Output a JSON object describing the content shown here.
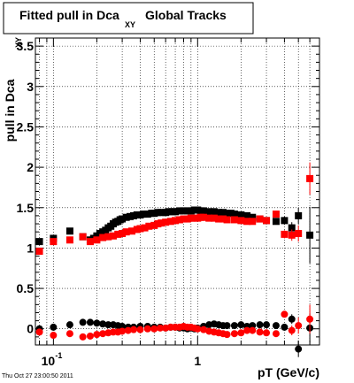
{
  "chart_data": {
    "type": "scatter",
    "title_main": "Fitted pull in Dca",
    "title_sub": "XY",
    "title_tail": "Global Tracks",
    "xlabel": "pT (GeV/c)",
    "ylabel": "pull in Dca",
    "ylabel_sub": "XY",
    "x_scale": "log",
    "xlim": [
      0.075,
      7.0
    ],
    "ylim": [
      -0.2,
      3.6
    ],
    "x_ticks": [
      {
        "v": 0.1,
        "base": "10",
        "exp": "-1"
      },
      {
        "v": 1,
        "base": "1",
        "exp": ""
      }
    ],
    "y_ticks": [
      "0",
      "0.5",
      "1",
      "1.5",
      "2",
      "2.5",
      "3",
      "3.5"
    ],
    "grid": true,
    "timestamp": "Thu Oct 27 23:00:50 2011",
    "colors": {
      "black": "#000000",
      "red": "#ff0000"
    },
    "series": [
      {
        "color": "black",
        "marker": "square",
        "x": [
          0.08,
          0.1,
          0.13,
          0.16,
          0.18,
          0.19,
          0.2,
          0.21,
          0.22,
          0.23,
          0.24,
          0.25,
          0.26,
          0.27,
          0.28,
          0.29,
          0.3,
          0.32,
          0.34,
          0.36,
          0.38,
          0.4,
          0.42,
          0.45,
          0.48,
          0.5,
          0.53,
          0.56,
          0.6,
          0.63,
          0.67,
          0.7,
          0.75,
          0.8,
          0.85,
          0.9,
          0.95,
          1.0,
          1.05,
          1.1,
          1.2,
          1.3,
          1.4,
          1.5,
          1.6,
          1.7,
          1.8,
          2.0,
          2.2,
          2.4,
          2.7,
          3.0,
          3.5,
          4.0,
          4.5,
          5.0,
          6.0
        ],
        "y": [
          1.08,
          1.12,
          1.21,
          1.14,
          1.1,
          1.12,
          1.15,
          1.18,
          1.2,
          1.22,
          1.25,
          1.27,
          1.3,
          1.32,
          1.33,
          1.35,
          1.36,
          1.38,
          1.39,
          1.4,
          1.41,
          1.41,
          1.42,
          1.42,
          1.43,
          1.43,
          1.44,
          1.44,
          1.44,
          1.45,
          1.45,
          1.45,
          1.46,
          1.46,
          1.46,
          1.46,
          1.47,
          1.47,
          1.46,
          1.46,
          1.45,
          1.45,
          1.44,
          1.44,
          1.43,
          1.43,
          1.42,
          1.41,
          1.4,
          1.38,
          1.36,
          1.34,
          1.33,
          1.34,
          1.25,
          1.4,
          1.16
        ],
        "err": [
          0,
          0,
          0,
          0,
          0,
          0,
          0,
          0,
          0,
          0,
          0,
          0,
          0,
          0,
          0,
          0,
          0,
          0,
          0,
          0,
          0,
          0,
          0,
          0,
          0,
          0,
          0,
          0,
          0,
          0,
          0,
          0,
          0,
          0,
          0,
          0,
          0,
          0,
          0,
          0,
          0,
          0,
          0,
          0,
          0,
          0,
          0,
          0,
          0,
          0,
          0,
          0,
          0.04,
          0.05,
          0.07,
          0.1,
          0.35
        ]
      },
      {
        "color": "red",
        "marker": "square",
        "x": [
          0.08,
          0.1,
          0.13,
          0.16,
          0.18,
          0.2,
          0.22,
          0.24,
          0.26,
          0.28,
          0.3,
          0.32,
          0.35,
          0.38,
          0.4,
          0.43,
          0.46,
          0.5,
          0.53,
          0.56,
          0.6,
          0.65,
          0.7,
          0.75,
          0.8,
          0.85,
          0.9,
          0.95,
          1.0,
          1.05,
          1.1,
          1.2,
          1.3,
          1.4,
          1.5,
          1.6,
          1.8,
          2.0,
          2.2,
          2.4,
          2.7,
          3.0,
          3.5,
          4.0,
          4.5,
          5.0,
          6.0
        ],
        "y": [
          0.96,
          1.08,
          1.1,
          1.14,
          1.08,
          1.1,
          1.13,
          1.14,
          1.15,
          1.17,
          1.18,
          1.2,
          1.21,
          1.23,
          1.24,
          1.25,
          1.27,
          1.28,
          1.3,
          1.31,
          1.32,
          1.33,
          1.34,
          1.35,
          1.36,
          1.36,
          1.37,
          1.37,
          1.37,
          1.38,
          1.38,
          1.37,
          1.37,
          1.36,
          1.36,
          1.35,
          1.35,
          1.34,
          1.33,
          1.33,
          1.36,
          1.34,
          1.42,
          1.17,
          1.16,
          1.18,
          1.86
        ],
        "err": [
          0,
          0,
          0,
          0,
          0,
          0,
          0,
          0,
          0,
          0,
          0,
          0,
          0,
          0,
          0,
          0,
          0,
          0,
          0,
          0,
          0,
          0,
          0,
          0,
          0,
          0,
          0,
          0,
          0,
          0,
          0,
          0,
          0,
          0,
          0,
          0,
          0,
          0,
          0,
          0,
          0,
          0,
          0.04,
          0.05,
          0.07,
          0.1,
          0.2
        ]
      },
      {
        "color": "black",
        "marker": "circle",
        "x": [
          0.08,
          0.1,
          0.13,
          0.16,
          0.18,
          0.2,
          0.22,
          0.24,
          0.26,
          0.28,
          0.3,
          0.33,
          0.36,
          0.4,
          0.45,
          0.5,
          0.55,
          0.6,
          0.65,
          0.7,
          0.75,
          0.8,
          0.85,
          0.9,
          0.95,
          1.0,
          1.1,
          1.2,
          1.3,
          1.4,
          1.5,
          1.6,
          1.8,
          2.0,
          2.2,
          2.4,
          2.7,
          3.0,
          3.5,
          4.0,
          4.5,
          5.0,
          6.0
        ],
        "y": [
          0.0,
          0.02,
          0.05,
          0.08,
          0.08,
          0.07,
          0.06,
          0.05,
          0.05,
          0.04,
          0.03,
          0.02,
          0.02,
          0.03,
          0.03,
          0.02,
          0.02,
          0.01,
          0.02,
          0.02,
          0.01,
          0.01,
          0.0,
          0.01,
          0.0,
          0.01,
          0.03,
          0.05,
          0.06,
          0.05,
          0.04,
          0.04,
          0.04,
          0.05,
          0.03,
          0.04,
          0.05,
          0.05,
          0.04,
          0.02,
          0.12,
          -0.25,
          0.01
        ],
        "err": [
          0,
          0,
          0,
          0,
          0,
          0,
          0,
          0,
          0,
          0,
          0,
          0,
          0,
          0,
          0,
          0,
          0,
          0,
          0,
          0,
          0,
          0,
          0,
          0,
          0,
          0,
          0,
          0,
          0,
          0,
          0,
          0,
          0,
          0,
          0,
          0,
          0,
          0,
          0.04,
          0.04,
          0.06,
          0.1,
          0.18
        ]
      },
      {
        "color": "red",
        "marker": "circle",
        "x": [
          0.08,
          0.1,
          0.13,
          0.16,
          0.18,
          0.2,
          0.22,
          0.24,
          0.26,
          0.28,
          0.3,
          0.33,
          0.36,
          0.4,
          0.45,
          0.5,
          0.55,
          0.6,
          0.65,
          0.7,
          0.75,
          0.8,
          0.85,
          0.9,
          0.95,
          1.0,
          1.1,
          1.2,
          1.3,
          1.4,
          1.5,
          1.6,
          1.8,
          2.0,
          2.2,
          2.4,
          2.7,
          3.0,
          3.5,
          4.0,
          4.5,
          5.0,
          6.0
        ],
        "y": [
          -0.04,
          -0.08,
          -0.06,
          -0.1,
          -0.09,
          -0.07,
          -0.06,
          -0.05,
          -0.04,
          -0.04,
          -0.03,
          -0.02,
          -0.01,
          -0.01,
          0.0,
          0.0,
          0.01,
          0.01,
          0.02,
          0.02,
          0.02,
          0.03,
          0.02,
          0.02,
          0.01,
          0.0,
          -0.01,
          -0.03,
          -0.04,
          -0.05,
          -0.06,
          -0.07,
          -0.06,
          -0.05,
          -0.02,
          -0.02,
          -0.04,
          -0.05,
          -0.06,
          0.18,
          -0.02,
          0.04,
          0.12
        ],
        "err": [
          0,
          0,
          0,
          0,
          0,
          0,
          0,
          0,
          0,
          0,
          0,
          0,
          0,
          0,
          0,
          0,
          0,
          0,
          0,
          0,
          0,
          0,
          0,
          0,
          0,
          0,
          0,
          0,
          0,
          0,
          0,
          0,
          0,
          0,
          0,
          0,
          0,
          0,
          0.04,
          0.04,
          0.06,
          0.1,
          0.18
        ]
      }
    ]
  }
}
